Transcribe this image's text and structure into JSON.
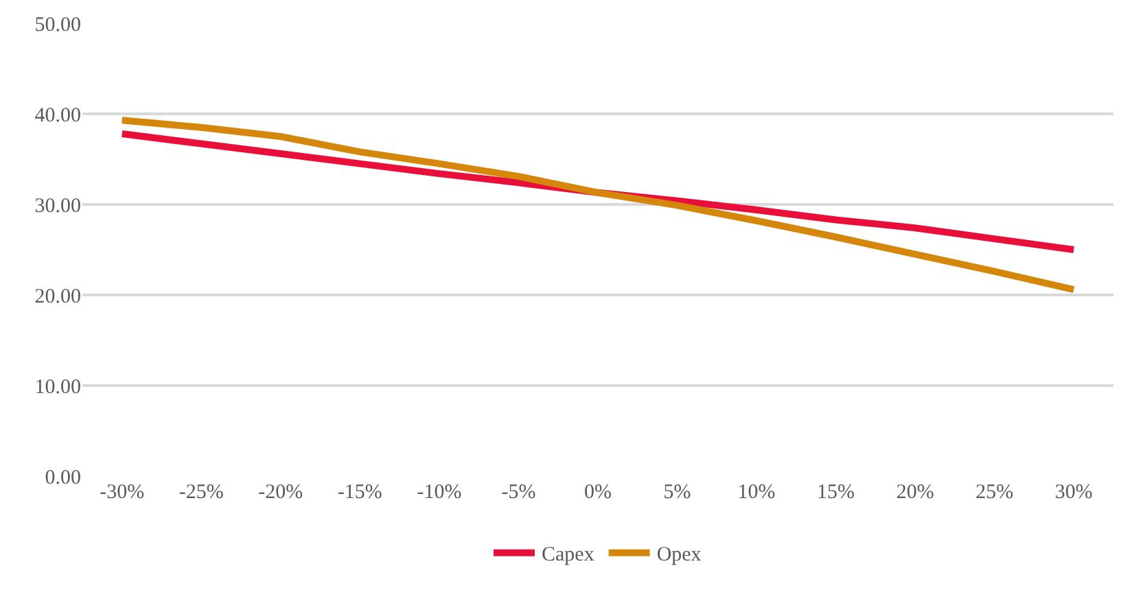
{
  "chart_data": {
    "type": "line",
    "categories": [
      "-30%",
      "-25%",
      "-20%",
      "-15%",
      "-10%",
      "-5%",
      "0%",
      "5%",
      "10%",
      "15%",
      "20%",
      "25%",
      "30%"
    ],
    "series": [
      {
        "name": "Capex",
        "color": "#e8103a",
        "values": [
          37.8,
          36.7,
          35.6,
          34.5,
          33.4,
          32.4,
          31.3,
          30.4,
          29.4,
          28.3,
          27.4,
          26.2,
          25.0
        ]
      },
      {
        "name": "Opex",
        "color": "#d4870a",
        "values": [
          39.3,
          38.5,
          37.5,
          35.8,
          34.5,
          33.1,
          31.3,
          29.9,
          28.2,
          26.4,
          24.5,
          22.6,
          20.6
        ]
      }
    ],
    "ylim": [
      0,
      50
    ],
    "yticks": [
      {
        "value": 0,
        "label": "0.00"
      },
      {
        "value": 10,
        "label": "10.00"
      },
      {
        "value": 20,
        "label": "20.00"
      },
      {
        "value": 30,
        "label": "30.00"
      },
      {
        "value": 40,
        "label": "40.00"
      },
      {
        "value": 50,
        "label": "50.00"
      }
    ],
    "grid": "y",
    "legend": "bottom",
    "marker": "none",
    "line_style": "solid"
  }
}
